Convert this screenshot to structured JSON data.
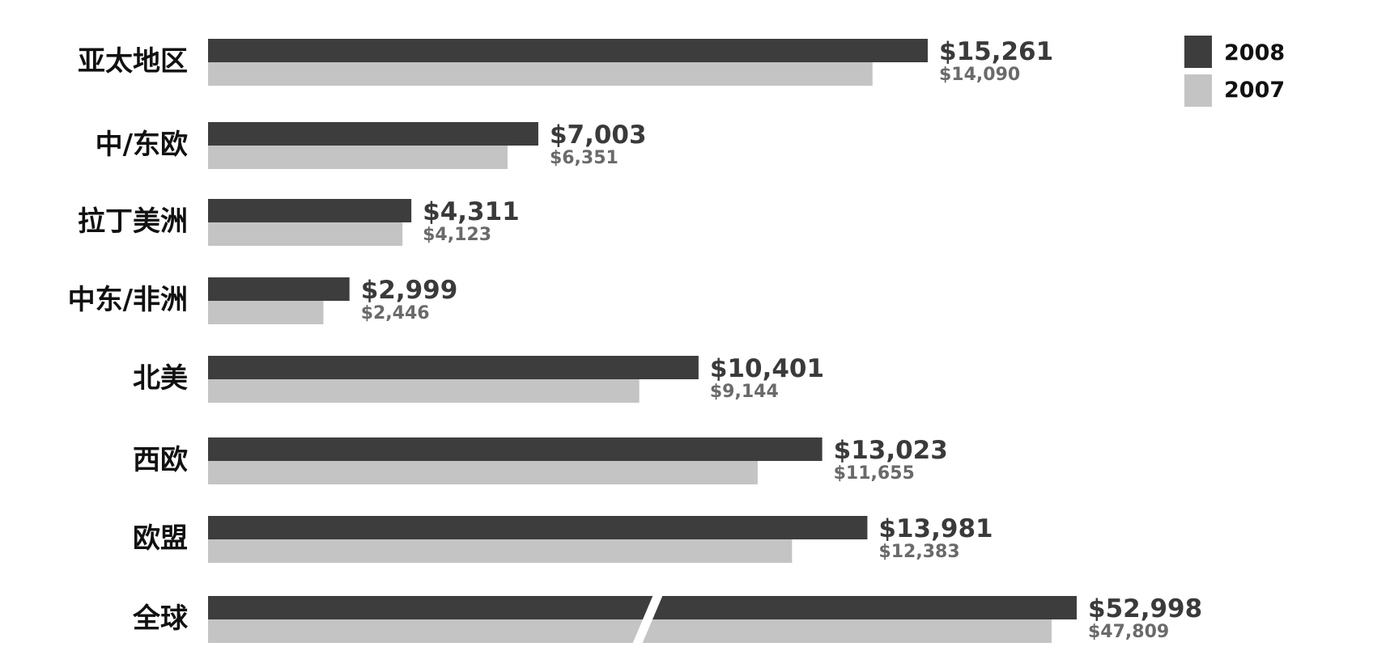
{
  "chart_data": {
    "type": "bar",
    "orientation": "horizontal",
    "categories": [
      "亚太地区",
      "中/东欧",
      "拉丁美洲",
      "中东/非洲",
      "北美",
      "西欧",
      "欧盟",
      "全球"
    ],
    "series": [
      {
        "name": "2008",
        "color": "#3d3d3d",
        "values": [
          15261,
          7003,
          4311,
          2999,
          10401,
          13023,
          13981,
          52998
        ],
        "labels": [
          "$15,261",
          "$7,003",
          "$4,311",
          "$2,999",
          "$10,401",
          "$13,023",
          "$13,981",
          "$52,998"
        ]
      },
      {
        "name": "2007",
        "color": "#c4c4c4",
        "values": [
          14090,
          6351,
          4123,
          2446,
          9144,
          11655,
          12383,
          47809
        ],
        "labels": [
          "$14,090",
          "$6,351",
          "$4,123",
          "$2,446",
          "$9,144",
          "$11,655",
          "$12,383",
          "$47,809"
        ]
      }
    ],
    "axis_break_category": "全球",
    "grid": false,
    "legend_position": "top-right"
  }
}
